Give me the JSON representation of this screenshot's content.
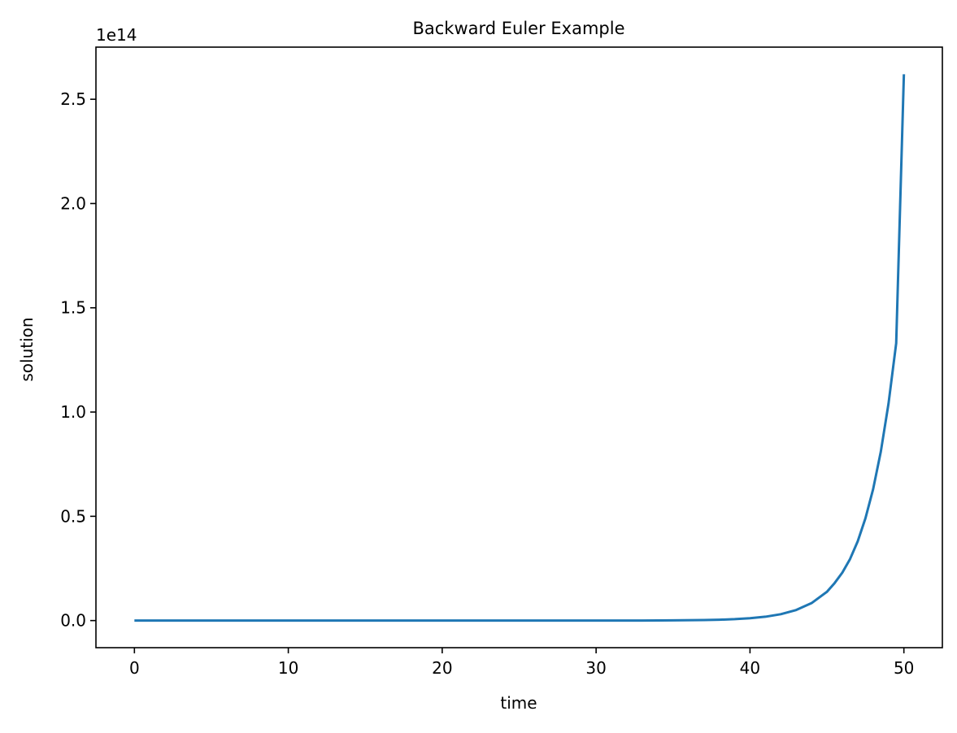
{
  "chart_data": {
    "type": "line",
    "title": "Backward Euler Example",
    "xlabel": "time",
    "ylabel": "solution",
    "y_offset_text": "1e14",
    "xlim": [
      -2.5,
      52.5
    ],
    "ylim": [
      -0.13,
      2.75
    ],
    "x_ticks": [
      0,
      10,
      20,
      30,
      40,
      50
    ],
    "x_tick_labels": [
      "0",
      "10",
      "20",
      "30",
      "40",
      "50"
    ],
    "y_ticks": [
      0.0,
      0.5,
      1.0,
      1.5,
      2.0,
      2.5
    ],
    "y_tick_labels": [
      "0.0",
      "0.5",
      "1.0",
      "1.5",
      "2.0",
      "2.5"
    ],
    "y_scale_multiplier": 100000000000000.0,
    "grid": false,
    "series": [
      {
        "color": "#1f77b4",
        "x": [
          0,
          5,
          10,
          15,
          20,
          25,
          30,
          33,
          35,
          37,
          38,
          39,
          40,
          41,
          42,
          43,
          44,
          45,
          45.5,
          46,
          46.5,
          47,
          47.5,
          48,
          48.5,
          49,
          49.5,
          50
        ],
        "y": [
          0.0,
          0.0,
          0.0,
          0.0,
          0.0,
          0.0,
          0.0,
          0.0003,
          0.0009,
          0.0024,
          0.004,
          0.0067,
          0.0111,
          0.0184,
          0.0305,
          0.0506,
          0.0837,
          0.138,
          0.18,
          0.23,
          0.295,
          0.38,
          0.49,
          0.63,
          0.81,
          1.04,
          1.33,
          2.62
        ]
      }
    ]
  }
}
